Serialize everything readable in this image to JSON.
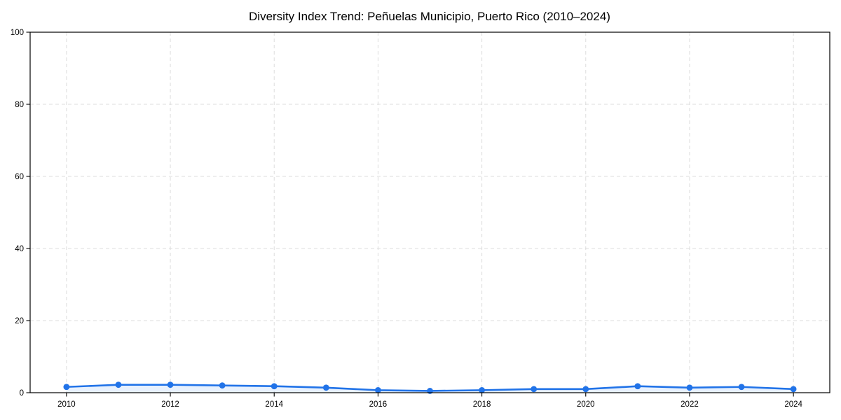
{
  "figure": {
    "title": "Diversity Index Trend: Peñuelas Municipio, Puerto Rico (2010–2024)"
  },
  "chart_data": {
    "type": "line",
    "title": "Diversity Index Trend: Peñuelas Municipio, Puerto Rico (2010–2024)",
    "xlabel": "",
    "ylabel": "",
    "x": [
      2010,
      2011,
      2012,
      2013,
      2014,
      2015,
      2016,
      2017,
      2018,
      2019,
      2020,
      2021,
      2022,
      2023,
      2024
    ],
    "series": [
      {
        "name": "Diversity Index",
        "values": [
          1.6,
          2.2,
          2.2,
          2.0,
          1.8,
          1.4,
          0.7,
          0.5,
          0.7,
          1.0,
          1.0,
          1.8,
          1.4,
          1.6,
          1.0
        ]
      }
    ],
    "x_ticks": [
      2010,
      2012,
      2014,
      2016,
      2018,
      2020,
      2022,
      2024
    ],
    "y_ticks": [
      0,
      20,
      40,
      60,
      80,
      100
    ],
    "xlim": [
      2009.3,
      2024.7
    ],
    "ylim": [
      0,
      100
    ],
    "grid": true,
    "grid_style": "dashed",
    "legend": "none",
    "marker": "circle"
  },
  "colors": {
    "line": "#2173e8",
    "marker": "#2173e8",
    "area_fill": "#2173e8",
    "area_fill_opacity": 0.1,
    "grid": "#dcdcdc",
    "axis": "#000000",
    "text": "#000000",
    "background": "#ffffff"
  }
}
